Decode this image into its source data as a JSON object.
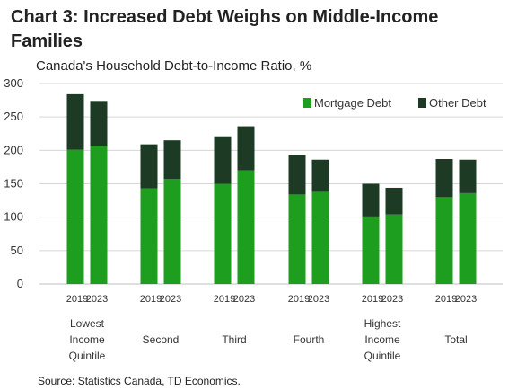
{
  "title": "Chart 3: Increased Debt Weighs on Middle-Income Families",
  "source": "Source: Statistics Canada, TD Economics.",
  "chart_data": {
    "type": "bar",
    "stacked": true,
    "subtitle": "Canada's Household Debt-to-Income Ratio, %",
    "ylim": [
      0,
      300
    ],
    "yticks": [
      0,
      50,
      100,
      150,
      200,
      250,
      300
    ],
    "years": [
      "2019",
      "2023"
    ],
    "categories": [
      [
        "Lowest",
        "Income",
        "Quintile"
      ],
      [
        "Second"
      ],
      [
        "Third"
      ],
      [
        "Fourth"
      ],
      [
        "Highest",
        "Income",
        "Quintile"
      ],
      [
        "Total"
      ]
    ],
    "series": [
      {
        "name": "Mortgage Debt",
        "color": "#1e9e1e",
        "values": [
          [
            201,
            207
          ],
          [
            143,
            157
          ],
          [
            150,
            170
          ],
          [
            134,
            138
          ],
          [
            101,
            104
          ],
          [
            130,
            136
          ]
        ]
      },
      {
        "name": "Other Debt",
        "color": "#1c3a24",
        "values": [
          [
            83,
            67
          ],
          [
            66,
            58
          ],
          [
            71,
            66
          ],
          [
            59,
            48
          ],
          [
            49,
            40
          ],
          [
            57,
            50
          ]
        ]
      }
    ],
    "legend_position": "top-right",
    "grid": true
  }
}
